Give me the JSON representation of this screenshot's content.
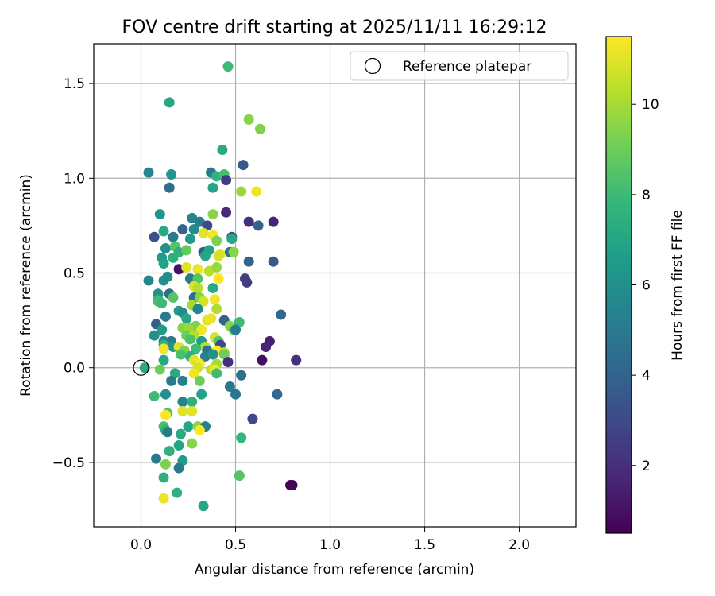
{
  "chart_data": {
    "type": "scatter",
    "title": "FOV centre drift starting at 2025/11/11 16:29:12",
    "xlabel": "Angular distance from reference (arcmin)",
    "ylabel": "Rotation from reference (arcmin)",
    "xlim": [
      -0.25,
      2.3
    ],
    "ylim": [
      -0.84,
      1.71
    ],
    "xticks": [
      0.0,
      0.5,
      1.0,
      1.5,
      2.0
    ],
    "xtick_labels": [
      "0.0",
      "0.5",
      "1.0",
      "1.5",
      "2.0"
    ],
    "yticks": [
      -0.5,
      0.0,
      0.5,
      1.0,
      1.5
    ],
    "ytick_labels": [
      "−0.5",
      "0.0",
      "0.5",
      "1.0",
      "1.5"
    ],
    "grid": true,
    "legend": {
      "position": "top-right",
      "label": "Reference platepar"
    },
    "reference_point": {
      "x": 0.0,
      "y": 0.0
    },
    "colorbar": {
      "label": "Hours from first FF file",
      "range": [
        0.5,
        11.5
      ],
      "ticks": [
        2,
        4,
        6,
        8,
        10
      ],
      "tick_labels": [
        "2",
        "4",
        "6",
        "8",
        "10"
      ],
      "colormap": [
        "#440154",
        "#482878",
        "#3e4989",
        "#31688e",
        "#26828e",
        "#1f9e89",
        "#35b779",
        "#6ece58",
        "#b5de2b",
        "#fde725"
      ]
    },
    "points": [
      {
        "x": 0.46,
        "y": 1.59,
        "t": 8.0
      },
      {
        "x": 0.15,
        "y": 1.4,
        "t": 7.0
      },
      {
        "x": 0.57,
        "y": 1.31,
        "t": 9.5
      },
      {
        "x": 0.63,
        "y": 1.26,
        "t": 9.3
      },
      {
        "x": 0.43,
        "y": 1.15,
        "t": 7.2
      },
      {
        "x": 0.54,
        "y": 1.07,
        "t": 3.5
      },
      {
        "x": 0.04,
        "y": 1.03,
        "t": 5.5
      },
      {
        "x": 0.16,
        "y": 1.02,
        "t": 6.2
      },
      {
        "x": 0.37,
        "y": 1.03,
        "t": 5.0
      },
      {
        "x": 0.4,
        "y": 1.01,
        "t": 7.6
      },
      {
        "x": 0.44,
        "y": 1.02,
        "t": 8.2
      },
      {
        "x": 0.45,
        "y": 0.99,
        "t": 2.5
      },
      {
        "x": 0.15,
        "y": 0.95,
        "t": 4.5
      },
      {
        "x": 0.38,
        "y": 0.95,
        "t": 7.0
      },
      {
        "x": 0.53,
        "y": 0.93,
        "t": 9.8
      },
      {
        "x": 0.61,
        "y": 0.93,
        "t": 11.2
      },
      {
        "x": 0.1,
        "y": 0.81,
        "t": 6.2
      },
      {
        "x": 0.38,
        "y": 0.81,
        "t": 9.5
      },
      {
        "x": 0.45,
        "y": 0.82,
        "t": 1.8
      },
      {
        "x": 0.57,
        "y": 0.77,
        "t": 2.0
      },
      {
        "x": 0.7,
        "y": 0.77,
        "t": 1.6
      },
      {
        "x": 0.27,
        "y": 0.79,
        "t": 5.5
      },
      {
        "x": 0.31,
        "y": 0.77,
        "t": 5.2
      },
      {
        "x": 0.35,
        "y": 0.75,
        "t": 3.0
      },
      {
        "x": 0.62,
        "y": 0.75,
        "t": 4.0
      },
      {
        "x": 0.22,
        "y": 0.73,
        "t": 4.0
      },
      {
        "x": 0.12,
        "y": 0.72,
        "t": 7.2
      },
      {
        "x": 0.28,
        "y": 0.73,
        "t": 5.8
      },
      {
        "x": 0.07,
        "y": 0.69,
        "t": 3.2
      },
      {
        "x": 0.17,
        "y": 0.69,
        "t": 5.0
      },
      {
        "x": 0.33,
        "y": 0.71,
        "t": 11.0
      },
      {
        "x": 0.38,
        "y": 0.7,
        "t": 11.3
      },
      {
        "x": 0.48,
        "y": 0.69,
        "t": 3.0
      },
      {
        "x": 0.48,
        "y": 0.68,
        "t": 7.0
      },
      {
        "x": 0.26,
        "y": 0.68,
        "t": 6.5
      },
      {
        "x": 0.4,
        "y": 0.67,
        "t": 9.3
      },
      {
        "x": 0.13,
        "y": 0.63,
        "t": 6.0
      },
      {
        "x": 0.18,
        "y": 0.64,
        "t": 8.5
      },
      {
        "x": 0.2,
        "y": 0.61,
        "t": 7.5
      },
      {
        "x": 0.24,
        "y": 0.62,
        "t": 8.8
      },
      {
        "x": 0.33,
        "y": 0.61,
        "t": 3.5
      },
      {
        "x": 0.36,
        "y": 0.62,
        "t": 6.8
      },
      {
        "x": 0.42,
        "y": 0.6,
        "t": 11.0
      },
      {
        "x": 0.47,
        "y": 0.61,
        "t": 4.8
      },
      {
        "x": 0.49,
        "y": 0.61,
        "t": 9.5
      },
      {
        "x": 0.11,
        "y": 0.58,
        "t": 6.5
      },
      {
        "x": 0.17,
        "y": 0.58,
        "t": 7.5
      },
      {
        "x": 0.34,
        "y": 0.59,
        "t": 7.0
      },
      {
        "x": 0.41,
        "y": 0.59,
        "t": 10.8
      },
      {
        "x": 0.57,
        "y": 0.56,
        "t": 4.0
      },
      {
        "x": 0.7,
        "y": 0.56,
        "t": 3.5
      },
      {
        "x": 0.12,
        "y": 0.55,
        "t": 6.8
      },
      {
        "x": 0.2,
        "y": 0.52,
        "t": 1.0
      },
      {
        "x": 0.24,
        "y": 0.53,
        "t": 11.0
      },
      {
        "x": 0.3,
        "y": 0.52,
        "t": 11.2
      },
      {
        "x": 0.36,
        "y": 0.51,
        "t": 10.3
      },
      {
        "x": 0.4,
        "y": 0.53,
        "t": 9.8
      },
      {
        "x": 0.04,
        "y": 0.46,
        "t": 5.5
      },
      {
        "x": 0.12,
        "y": 0.46,
        "t": 6.0
      },
      {
        "x": 0.14,
        "y": 0.48,
        "t": 5.8
      },
      {
        "x": 0.26,
        "y": 0.47,
        "t": 5.0
      },
      {
        "x": 0.3,
        "y": 0.47,
        "t": 8.5
      },
      {
        "x": 0.41,
        "y": 0.47,
        "t": 11.5
      },
      {
        "x": 0.55,
        "y": 0.47,
        "t": 2.6
      },
      {
        "x": 0.56,
        "y": 0.45,
        "t": 2.5
      },
      {
        "x": 0.28,
        "y": 0.43,
        "t": 11.0
      },
      {
        "x": 0.3,
        "y": 0.42,
        "t": 10.3
      },
      {
        "x": 0.38,
        "y": 0.42,
        "t": 7.2
      },
      {
        "x": 0.09,
        "y": 0.39,
        "t": 6.0
      },
      {
        "x": 0.09,
        "y": 0.36,
        "t": 7.2
      },
      {
        "x": 0.15,
        "y": 0.39,
        "t": 4.5
      },
      {
        "x": 0.28,
        "y": 0.37,
        "t": 4.5
      },
      {
        "x": 0.31,
        "y": 0.37,
        "t": 9.5
      },
      {
        "x": 0.33,
        "y": 0.35,
        "t": 10.8
      },
      {
        "x": 0.39,
        "y": 0.36,
        "t": 11.3
      },
      {
        "x": 0.09,
        "y": 0.35,
        "t": 8.2
      },
      {
        "x": 0.11,
        "y": 0.34,
        "t": 8.0
      },
      {
        "x": 0.17,
        "y": 0.37,
        "t": 8.5
      },
      {
        "x": 0.27,
        "y": 0.33,
        "t": 10.0
      },
      {
        "x": 0.4,
        "y": 0.31,
        "t": 10.2
      },
      {
        "x": 0.2,
        "y": 0.3,
        "t": 6.5
      },
      {
        "x": 0.22,
        "y": 0.29,
        "t": 5.8
      },
      {
        "x": 0.3,
        "y": 0.31,
        "t": 5.5
      },
      {
        "x": 0.74,
        "y": 0.28,
        "t": 4.2
      },
      {
        "x": 0.13,
        "y": 0.27,
        "t": 5.0
      },
      {
        "x": 0.24,
        "y": 0.26,
        "t": 7.0
      },
      {
        "x": 0.35,
        "y": 0.25,
        "t": 11.0
      },
      {
        "x": 0.37,
        "y": 0.26,
        "t": 11.2
      },
      {
        "x": 0.44,
        "y": 0.25,
        "t": 4.0
      },
      {
        "x": 0.52,
        "y": 0.24,
        "t": 8.0
      },
      {
        "x": 0.08,
        "y": 0.23,
        "t": 3.8
      },
      {
        "x": 0.29,
        "y": 0.22,
        "t": 9.3
      },
      {
        "x": 0.47,
        "y": 0.22,
        "t": 9.5
      },
      {
        "x": 0.49,
        "y": 0.2,
        "t": 9.0
      },
      {
        "x": 0.5,
        "y": 0.2,
        "t": 5.0
      },
      {
        "x": 0.11,
        "y": 0.2,
        "t": 6.5
      },
      {
        "x": 0.22,
        "y": 0.21,
        "t": 9.5
      },
      {
        "x": 0.25,
        "y": 0.21,
        "t": 9.8
      },
      {
        "x": 0.32,
        "y": 0.2,
        "t": 11.3
      },
      {
        "x": 0.07,
        "y": 0.17,
        "t": 6.0
      },
      {
        "x": 0.24,
        "y": 0.17,
        "t": 9.0
      },
      {
        "x": 0.28,
        "y": 0.17,
        "t": 10.3
      },
      {
        "x": 0.39,
        "y": 0.16,
        "t": 10.8
      },
      {
        "x": 0.12,
        "y": 0.14,
        "t": 5.5
      },
      {
        "x": 0.16,
        "y": 0.14,
        "t": 5.0
      },
      {
        "x": 0.26,
        "y": 0.15,
        "t": 8.3
      },
      {
        "x": 0.32,
        "y": 0.14,
        "t": 6.5
      },
      {
        "x": 0.41,
        "y": 0.14,
        "t": 8.5
      },
      {
        "x": 0.68,
        "y": 0.14,
        "t": 1.5
      },
      {
        "x": 0.12,
        "y": 0.12,
        "t": 7.5
      },
      {
        "x": 0.17,
        "y": 0.11,
        "t": 6.2
      },
      {
        "x": 0.2,
        "y": 0.11,
        "t": 11.0
      },
      {
        "x": 0.34,
        "y": 0.11,
        "t": 10.3
      },
      {
        "x": 0.42,
        "y": 0.12,
        "t": 3.0
      },
      {
        "x": 0.66,
        "y": 0.11,
        "t": 1.6
      },
      {
        "x": 0.12,
        "y": 0.1,
        "t": 11.3
      },
      {
        "x": 0.23,
        "y": 0.09,
        "t": 9.3
      },
      {
        "x": 0.29,
        "y": 0.1,
        "t": 8.0
      },
      {
        "x": 0.35,
        "y": 0.09,
        "t": 4.5
      },
      {
        "x": 0.4,
        "y": 0.09,
        "t": 11.5
      },
      {
        "x": 0.44,
        "y": 0.08,
        "t": 10.3
      },
      {
        "x": 0.44,
        "y": 0.07,
        "t": 9.0
      },
      {
        "x": 0.21,
        "y": 0.07,
        "t": 8.3
      },
      {
        "x": 0.26,
        "y": 0.06,
        "t": 7.5
      },
      {
        "x": 0.34,
        "y": 0.06,
        "t": 5.2
      },
      {
        "x": 0.38,
        "y": 0.07,
        "t": 6.0
      },
      {
        "x": 0.12,
        "y": 0.04,
        "t": 7.0
      },
      {
        "x": 0.28,
        "y": 0.04,
        "t": 11.0
      },
      {
        "x": 0.31,
        "y": 0.02,
        "t": 11.5
      },
      {
        "x": 0.4,
        "y": 0.02,
        "t": 10.0
      },
      {
        "x": 0.46,
        "y": 0.03,
        "t": 2.0
      },
      {
        "x": 0.64,
        "y": 0.04,
        "t": 0.9
      },
      {
        "x": 0.82,
        "y": 0.04,
        "t": 2.0
      },
      {
        "x": 0.3,
        "y": 0.0,
        "t": 10.8
      },
      {
        "x": 0.37,
        "y": -0.01,
        "t": 10.5
      },
      {
        "x": 0.39,
        "y": -0.01,
        "t": 11.3
      },
      {
        "x": 0.1,
        "y": -0.01,
        "t": 9.0
      },
      {
        "x": 0.02,
        "y": 0.0,
        "t": 7.2
      },
      {
        "x": 0.18,
        "y": -0.03,
        "t": 7.2
      },
      {
        "x": 0.28,
        "y": -0.03,
        "t": 11.3
      },
      {
        "x": 0.4,
        "y": -0.03,
        "t": 8.0
      },
      {
        "x": 0.53,
        "y": -0.04,
        "t": 4.5
      },
      {
        "x": 0.16,
        "y": -0.07,
        "t": 5.0
      },
      {
        "x": 0.22,
        "y": -0.07,
        "t": 5.2
      },
      {
        "x": 0.31,
        "y": -0.07,
        "t": 9.0
      },
      {
        "x": 0.47,
        "y": -0.1,
        "t": 5.0
      },
      {
        "x": 0.13,
        "y": -0.14,
        "t": 6.0
      },
      {
        "x": 0.32,
        "y": -0.14,
        "t": 6.8
      },
      {
        "x": 0.5,
        "y": -0.14,
        "t": 4.8
      },
      {
        "x": 0.72,
        "y": -0.14,
        "t": 4.2
      },
      {
        "x": 0.07,
        "y": -0.15,
        "t": 8.0
      },
      {
        "x": 0.22,
        "y": -0.18,
        "t": 5.5
      },
      {
        "x": 0.27,
        "y": -0.18,
        "t": 7.5
      },
      {
        "x": 0.22,
        "y": -0.23,
        "t": 11.0
      },
      {
        "x": 0.27,
        "y": -0.23,
        "t": 11.0
      },
      {
        "x": 0.14,
        "y": -0.24,
        "t": 8.5
      },
      {
        "x": 0.13,
        "y": -0.25,
        "t": 11.5
      },
      {
        "x": 0.59,
        "y": -0.27,
        "t": 3.0
      },
      {
        "x": 0.12,
        "y": -0.31,
        "t": 8.3
      },
      {
        "x": 0.25,
        "y": -0.31,
        "t": 7.0
      },
      {
        "x": 0.3,
        "y": -0.31,
        "t": 9.5
      },
      {
        "x": 0.34,
        "y": -0.31,
        "t": 5.2
      },
      {
        "x": 0.31,
        "y": -0.33,
        "t": 11.5
      },
      {
        "x": 0.13,
        "y": -0.33,
        "t": 7.5
      },
      {
        "x": 0.14,
        "y": -0.34,
        "t": 5.0
      },
      {
        "x": 0.21,
        "y": -0.35,
        "t": 7.2
      },
      {
        "x": 0.53,
        "y": -0.37,
        "t": 7.8
      },
      {
        "x": 0.27,
        "y": -0.4,
        "t": 9.5
      },
      {
        "x": 0.2,
        "y": -0.41,
        "t": 7.0
      },
      {
        "x": 0.15,
        "y": -0.44,
        "t": 7.5
      },
      {
        "x": 0.08,
        "y": -0.48,
        "t": 5.0
      },
      {
        "x": 0.22,
        "y": -0.49,
        "t": 6.5
      },
      {
        "x": 0.13,
        "y": -0.51,
        "t": 9.3
      },
      {
        "x": 0.2,
        "y": -0.53,
        "t": 5.0
      },
      {
        "x": 0.52,
        "y": -0.57,
        "t": 8.5
      },
      {
        "x": 0.12,
        "y": -0.58,
        "t": 7.5
      },
      {
        "x": 0.79,
        "y": -0.62,
        "t": 0.6
      },
      {
        "x": 0.8,
        "y": -0.62,
        "t": 0.6
      },
      {
        "x": 0.19,
        "y": -0.66,
        "t": 7.5
      },
      {
        "x": 0.12,
        "y": -0.69,
        "t": 11.2
      },
      {
        "x": 0.33,
        "y": -0.73,
        "t": 7.0
      }
    ]
  }
}
